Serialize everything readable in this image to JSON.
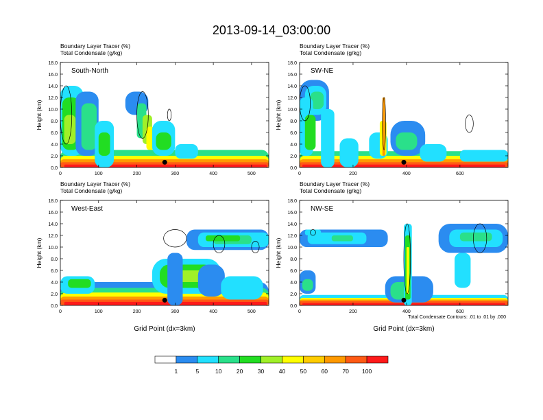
{
  "figure_title": "2013-09-14_03:00:00",
  "footnote": "Total Condensate Contours: .01 to .01 by .000",
  "colorbar": {
    "labels": [
      "1",
      "5",
      "10",
      "20",
      "30",
      "40",
      "50",
      "60",
      "70",
      "100"
    ],
    "colors": [
      "#ffffff",
      "#2b8cf0",
      "#22e0ff",
      "#2ae08a",
      "#22dd22",
      "#a0f028",
      "#ffff00",
      "#ffcc00",
      "#ff9900",
      "#ff5a14",
      "#ff1a1a"
    ]
  },
  "chart_data": [
    {
      "type": "heatmap",
      "panel": "South-North",
      "title_line1": "Boundary Layer Tracer    (%)",
      "title_line2": "Total Condensate   (g/kg)",
      "ylabel": "Height (km)",
      "xlabel": "",
      "xlim": [
        0,
        545
      ],
      "ylim": [
        0,
        18
      ],
      "xticks": [
        "0",
        "100",
        "200",
        "300",
        "400",
        "500"
      ],
      "yticks": [
        "0.0",
        "2.0",
        "4.0",
        "6.0",
        "8.0",
        "10.0",
        "12.0",
        "14.0",
        "16.0",
        "18.0"
      ],
      "marker_x": 273
    },
    {
      "type": "heatmap",
      "panel": "SW-NE",
      "title_line1": "Boundary Layer Tracer    (%)",
      "title_line2": "Total Condensate   (g/kg)",
      "ylabel": "Height (km)",
      "xlabel": "",
      "xlim": [
        0,
        780
      ],
      "ylim": [
        0,
        18
      ],
      "xticks": [
        "0",
        "200",
        "400",
        "600"
      ],
      "yticks": [
        "0.0",
        "2.0",
        "4.0",
        "6.0",
        "8.0",
        "10.0",
        "12.0",
        "14.0",
        "16.0",
        "18.0"
      ],
      "marker_x": 390
    },
    {
      "type": "heatmap",
      "panel": "West-East",
      "title_line1": "Boundary Layer Tracer    (%)",
      "title_line2": "Total Condensate   (g/kg)",
      "ylabel": "Height (km)",
      "xlabel": "Grid Point (dx=3km)",
      "xlim": [
        0,
        545
      ],
      "ylim": [
        0,
        18
      ],
      "xticks": [
        "0",
        "100",
        "200",
        "300",
        "400",
        "500"
      ],
      "yticks": [
        "0.0",
        "2.0",
        "4.0",
        "6.0",
        "8.0",
        "10.0",
        "12.0",
        "14.0",
        "16.0",
        "18.0"
      ],
      "marker_x": 273
    },
    {
      "type": "heatmap",
      "panel": "NW-SE",
      "title_line1": "Boundary Layer Tracer    (%)",
      "title_line2": "Total Condensate   (g/kg)",
      "ylabel": "Height (km)",
      "xlabel": "Grid Point (dx=3km)",
      "xlim": [
        0,
        780
      ],
      "ylim": [
        0,
        18
      ],
      "xticks": [
        "0",
        "200",
        "400",
        "600"
      ],
      "yticks": [
        "0.0",
        "2.0",
        "4.0",
        "6.0",
        "8.0",
        "10.0",
        "12.0",
        "14.0",
        "16.0",
        "18.0"
      ],
      "marker_x": 390
    }
  ]
}
